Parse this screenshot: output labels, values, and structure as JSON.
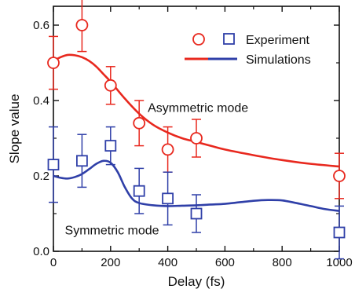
{
  "chart_data": {
    "type": "scatter",
    "xlabel": "Delay (fs)",
    "ylabel": "Slope value",
    "xlim": [
      0,
      1000
    ],
    "ylim": [
      0.0,
      0.65
    ],
    "xticks": [
      0,
      200,
      400,
      600,
      800,
      1000
    ],
    "yticks": [
      0.0,
      0.2,
      0.4,
      0.6
    ],
    "xtick_labels": [
      "0",
      "200",
      "400",
      "600",
      "800",
      "1000"
    ],
    "ytick_labels": [
      "0.0",
      "0.2",
      "0.4",
      "0.6"
    ],
    "legend": {
      "position": "top-right",
      "experiment_label": "Experiment",
      "simulation_label": "Simulations"
    },
    "annotations": [
      {
        "text": "Asymmetric mode",
        "x": 330,
        "y": 0.37
      },
      {
        "text": "Symmetric mode",
        "x": 40,
        "y": 0.045
      }
    ],
    "series": [
      {
        "mode": "asymmetric",
        "color": "#e8281e",
        "marker": "circle",
        "experiment": {
          "x": [
            0,
            100,
            200,
            300,
            400,
            500,
            1000
          ],
          "y": [
            0.5,
            0.6,
            0.44,
            0.34,
            0.27,
            0.3,
            0.2
          ],
          "err": [
            0.07,
            0.07,
            0.05,
            0.06,
            0.06,
            0.05,
            0.06
          ]
        },
        "simulation": {
          "x": [
            0,
            25,
            50,
            75,
            100,
            125,
            150,
            175,
            200,
            250,
            300,
            350,
            400,
            450,
            500,
            550,
            600,
            700,
            800,
            900,
            1000
          ],
          "y": [
            0.505,
            0.515,
            0.521,
            0.52,
            0.515,
            0.505,
            0.49,
            0.47,
            0.45,
            0.405,
            0.365,
            0.335,
            0.315,
            0.3,
            0.29,
            0.28,
            0.27,
            0.255,
            0.242,
            0.232,
            0.225
          ]
        }
      },
      {
        "mode": "symmetric",
        "color": "#2f3fa8",
        "marker": "square",
        "experiment": {
          "x": [
            0,
            100,
            200,
            300,
            400,
            500,
            1000
          ],
          "y": [
            0.23,
            0.24,
            0.28,
            0.16,
            0.14,
            0.1,
            0.05
          ],
          "err": [
            0.1,
            0.07,
            0.05,
            0.06,
            0.07,
            0.05,
            0.07
          ]
        },
        "simulation": {
          "x": [
            0,
            25,
            50,
            75,
            100,
            125,
            150,
            175,
            200,
            225,
            250,
            275,
            300,
            350,
            400,
            450,
            500,
            550,
            600,
            650,
            700,
            750,
            800,
            850,
            900,
            950,
            1000
          ],
          "y": [
            0.2,
            0.195,
            0.193,
            0.197,
            0.205,
            0.218,
            0.232,
            0.24,
            0.235,
            0.21,
            0.17,
            0.14,
            0.128,
            0.122,
            0.12,
            0.121,
            0.122,
            0.124,
            0.126,
            0.13,
            0.134,
            0.136,
            0.135,
            0.128,
            0.12,
            0.112,
            0.107
          ]
        }
      }
    ]
  }
}
